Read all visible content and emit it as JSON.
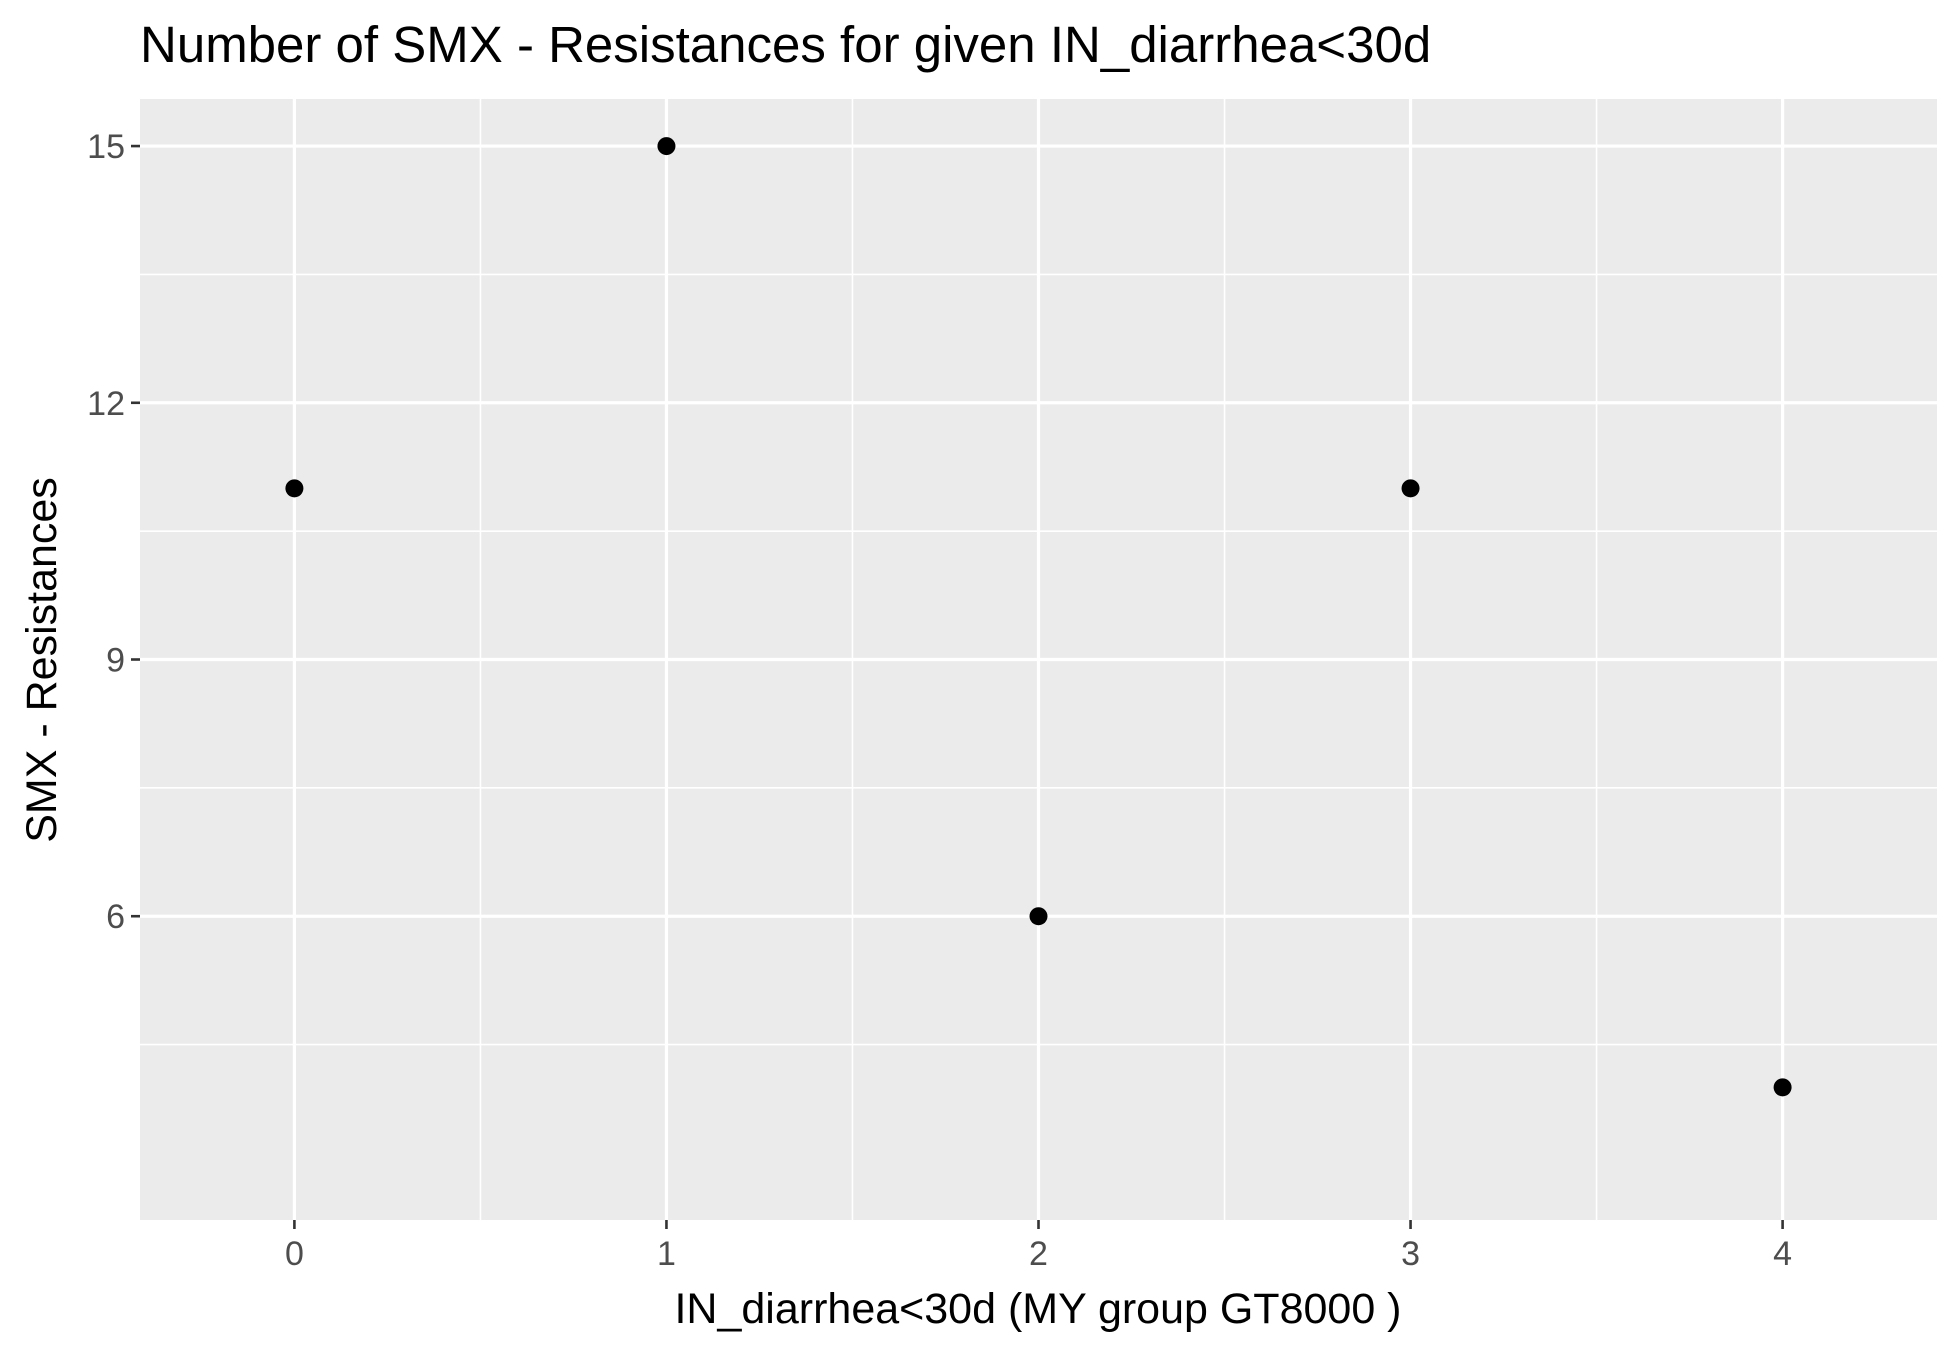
{
  "chart_data": {
    "type": "scatter",
    "title": "Number of SMX - Resistances for given IN_diarrhea<30d",
    "xlabel": "IN_diarrhea<30d     (MY group GT8000 )",
    "ylabel": "SMX - Resistances",
    "x_ticks": [
      "0",
      "1",
      "2",
      "3",
      "4"
    ],
    "y_ticks": [
      "6",
      "9",
      "12",
      "15"
    ],
    "xlim": [
      -0.415,
      4.415
    ],
    "ylim": [
      2.45,
      15.55
    ],
    "grid": true,
    "legend": "none",
    "series": [
      {
        "x": [
          0,
          1,
          2,
          3,
          4
        ],
        "y": [
          11,
          15,
          6,
          11,
          4
        ]
      }
    ],
    "colors": {
      "panel_background": "#ebebeb",
      "grid_major": "#ffffff",
      "point": "#000000",
      "tick_label": "#4d4d4d",
      "tick_mark": "#333333"
    }
  }
}
